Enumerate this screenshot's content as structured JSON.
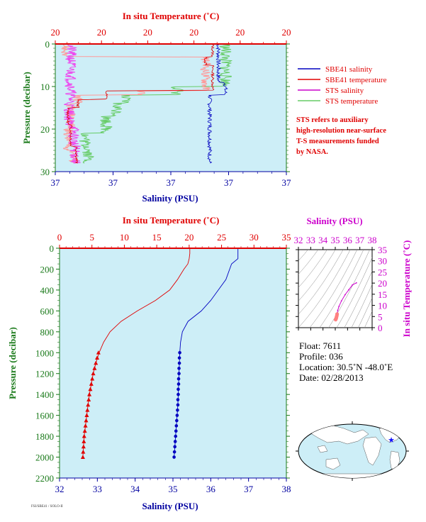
{
  "colors": {
    "plot_bg": "#cdeef7",
    "salinity_sbe": "#0000c0",
    "temperature_sbe": "#e00000",
    "salinity_sts": "#cc00cc",
    "temperature_sts": "#66cc66",
    "pressure_axis": "#1a7a1a",
    "sts_salinity_light": "#ee44ee",
    "sts_temperature_light": "#ff9999"
  },
  "chart_data": [
    {
      "id": "near_surface",
      "type": "line",
      "top_xlabel": "In situ Temperature (˚C)",
      "bottom_xlabel": "Salinity (PSU)",
      "ylabel": "Pressure (decibar)",
      "top_ticks": [
        "20",
        "20",
        "20",
        "20",
        "20",
        "20"
      ],
      "bottom_ticks": [
        "37",
        "37",
        "37",
        "37",
        "37"
      ],
      "y_ticks": [
        "0",
        "10",
        "20",
        "30"
      ],
      "ylim": [
        30,
        0
      ],
      "legend": {
        "placement": "right",
        "entries": [
          {
            "label": "SBE41 salinity",
            "color": "#0000c0"
          },
          {
            "label": "SBE41 temperature",
            "color": "#e00000"
          },
          {
            "label": "STS salinity",
            "color": "#cc00cc"
          },
          {
            "label": "STS temperature",
            "color": "#66cc66"
          }
        ]
      },
      "note_lines": [
        "STS refers to auxiliary",
        "high-resolution near-surface",
        "T-S measurements funded",
        "by NASA."
      ]
    },
    {
      "id": "full_profile",
      "type": "line",
      "top_xlabel": "In situ Temperature (˚C)",
      "bottom_xlabel": "Salinity (PSU)",
      "ylabel": "Pressure (decibar)",
      "top_ticks": [
        "0",
        "5",
        "10",
        "15",
        "20",
        "25",
        "30",
        "35"
      ],
      "bottom_ticks": [
        "32",
        "33",
        "34",
        "35",
        "36",
        "37",
        "38"
      ],
      "y_ticks": [
        "0",
        "200",
        "400",
        "600",
        "800",
        "1000",
        "1200",
        "1400",
        "1600",
        "1800",
        "2000",
        "2200"
      ],
      "xlim_temperature": [
        0,
        35
      ],
      "xlim_salinity": [
        32,
        38
      ],
      "ylim": [
        2200,
        0
      ],
      "temperature": {
        "pressure": [
          0,
          50,
          100,
          150,
          200,
          300,
          400,
          500,
          600,
          700,
          800,
          900,
          1000,
          1100,
          1200,
          1300,
          1400,
          1500,
          1600,
          1700,
          1800,
          1900,
          2000
        ],
        "values": [
          20.1,
          20.1,
          20.0,
          19.8,
          19.2,
          18.2,
          17.0,
          14.8,
          12.0,
          9.5,
          7.8,
          6.8,
          6.1,
          5.6,
          5.2,
          4.9,
          4.6,
          4.4,
          4.2,
          4.0,
          3.8,
          3.7,
          3.6
        ],
        "marker_pressure": [
          1000,
          1050,
          1100,
          1150,
          1200,
          1250,
          1300,
          1350,
          1400,
          1450,
          1500,
          1550,
          1600,
          1650,
          1700,
          1750,
          1800,
          1850,
          1900,
          1950,
          2000
        ],
        "marker_values": [
          6.0,
          5.8,
          5.6,
          5.4,
          5.2,
          5.05,
          4.9,
          4.75,
          4.6,
          4.5,
          4.4,
          4.3,
          4.2,
          4.1,
          4.0,
          3.9,
          3.8,
          3.75,
          3.7,
          3.65,
          3.6
        ]
      },
      "salinity": {
        "pressure": [
          0,
          50,
          100,
          150,
          200,
          300,
          400,
          500,
          600,
          700,
          800,
          900,
          1000,
          1100,
          1200,
          1300,
          1400,
          1500,
          1600,
          1700,
          1800,
          1900,
          2000
        ],
        "values": [
          36.72,
          36.72,
          36.72,
          36.55,
          36.5,
          36.4,
          36.2,
          36.0,
          35.75,
          35.4,
          35.25,
          35.2,
          35.18,
          35.17,
          35.16,
          35.15,
          35.14,
          35.13,
          35.11,
          35.09,
          35.07,
          35.05,
          35.03
        ],
        "marker_pressure": [
          1000,
          1050,
          1100,
          1150,
          1200,
          1250,
          1300,
          1350,
          1400,
          1450,
          1500,
          1550,
          1600,
          1650,
          1700,
          1750,
          1800,
          1850,
          1900,
          1950,
          2000
        ],
        "marker_values": [
          35.18,
          35.17,
          35.17,
          35.16,
          35.16,
          35.15,
          35.15,
          35.14,
          35.14,
          35.13,
          35.13,
          35.12,
          35.11,
          35.1,
          35.09,
          35.08,
          35.07,
          35.06,
          35.05,
          35.04,
          35.03
        ]
      }
    },
    {
      "id": "ts_diagram",
      "type": "scatter",
      "top_xlabel": "Salinity (PSU)",
      "right_ylabel": "In situ Temperature (˚C)",
      "x_ticks": [
        "32",
        "33",
        "34",
        "35",
        "36",
        "37",
        "38"
      ],
      "y_ticks": [
        "0",
        "5",
        "10",
        "15",
        "20",
        "25",
        "30",
        "35"
      ],
      "xlim": [
        32,
        38
      ],
      "ylim": [
        0,
        35
      ],
      "x": [
        35.03,
        35.05,
        35.08,
        35.1,
        35.13,
        35.15,
        35.2,
        35.3,
        35.5,
        35.8,
        36.1,
        36.4,
        36.72
      ],
      "y": [
        3.6,
        3.9,
        4.3,
        4.8,
        5.4,
        6.1,
        7.8,
        9.5,
        12.0,
        14.8,
        17.0,
        19.2,
        20.1
      ]
    }
  ],
  "float_info": {
    "float": "Float:  7611",
    "profile": "Profile:  036",
    "location": "Location:  30.5˚N  -48.0˚E",
    "date": "Date:  02/28/2013"
  },
  "map": {
    "marker_lat": 30.5,
    "marker_lon": -48.0,
    "marker_icon": "star-icon"
  },
  "credit": "FSI/SBE41 / SOLO-II"
}
